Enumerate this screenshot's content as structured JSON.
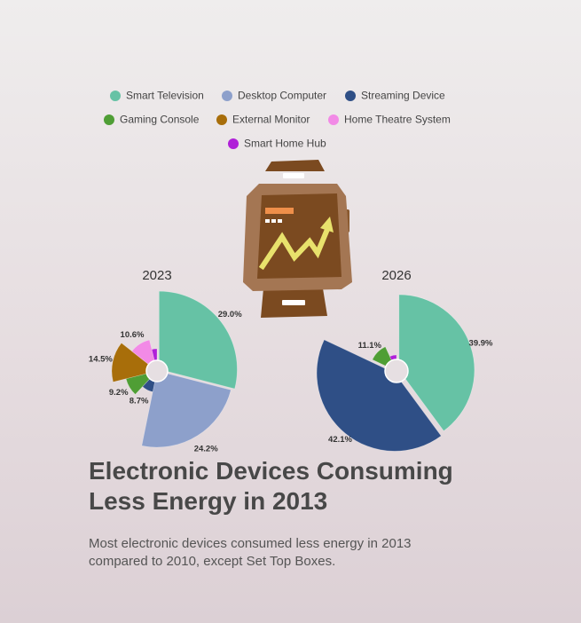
{
  "headline": "Electronic Devices Consuming Less Energy in 2013",
  "subtitle": "Most electronic devices consumed less energy in 2013 compared to 2010, except Set Top Boxes.",
  "icon": "smartwatch-trend-icon",
  "colors": {
    "Smart Television": "#66c2a5",
    "Desktop Computer": "#8da0cb",
    "Streaming Device": "#2f4f86",
    "Gaming Console": "#4f9e35",
    "External Monitor": "#a86e0a",
    "Home Theatre System": "#f28ae6",
    "Smart Home Hub": "#b020d8"
  },
  "chart_data": {
    "type": "pie",
    "legend": [
      "Smart Television",
      "Desktop Computer",
      "Streaming Device",
      "Gaming Console",
      "External Monitor",
      "Home Theatre System",
      "Smart Home Hub"
    ],
    "legend_position": "top-center",
    "pies": [
      {
        "title": "2023",
        "slices": [
          {
            "name": "Smart Television",
            "value": 29.0,
            "label": "29.0%"
          },
          {
            "name": "Desktop Computer",
            "value": 24.2,
            "label": "24.2%"
          },
          {
            "name": "Streaming Device",
            "value": 8.7,
            "label": "8.7%"
          },
          {
            "name": "Gaming Console",
            "value": 9.2,
            "label": "9.2%"
          },
          {
            "name": "External Monitor",
            "value": 14.5,
            "label": "14.5%"
          },
          {
            "name": "Home Theatre System",
            "value": 10.6,
            "label": "10.6%"
          },
          {
            "name": "Smart Home Hub",
            "value": 3.8,
            "label": ""
          }
        ]
      },
      {
        "title": "2026",
        "slices": [
          {
            "name": "Smart Television",
            "value": 39.9,
            "label": "39.9%"
          },
          {
            "name": "Streaming Device",
            "value": 42.1,
            "label": "42.1%"
          },
          {
            "name": "Gaming Console",
            "value": 11.1,
            "label": "11.1%"
          },
          {
            "name": "Smart Home Hub",
            "value": 6.9,
            "label": ""
          }
        ]
      }
    ]
  }
}
